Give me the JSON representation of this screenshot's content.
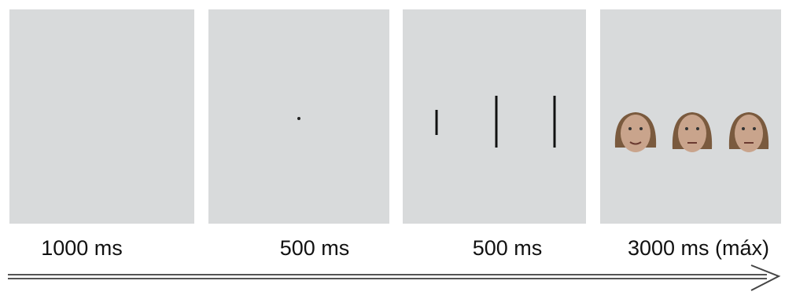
{
  "panels": [
    {
      "label": "1000 ms"
    },
    {
      "label": "500 ms"
    },
    {
      "label": "500 ms"
    },
    {
      "label": "3000 ms (máx)"
    }
  ]
}
